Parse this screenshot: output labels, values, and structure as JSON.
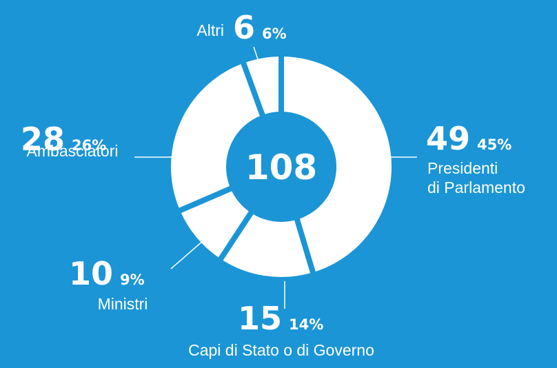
{
  "chart_data": {
    "type": "donut",
    "categories": [
      [
        "Presidenti",
        "di Parlamento"
      ],
      [
        "Capi di Stato o di Governo"
      ],
      [
        "Ministri"
      ],
      [
        "Ambasciatori"
      ],
      [
        "Altri"
      ]
    ],
    "values": [
      49,
      15,
      10,
      28,
      6
    ],
    "percentages": [
      45,
      14,
      9,
      26,
      6
    ],
    "percentage_labels": [
      "45%",
      "14%",
      "9%",
      "26%",
      "6%"
    ],
    "total": 108,
    "color": "#ffffff",
    "background": "#1b95d6"
  }
}
